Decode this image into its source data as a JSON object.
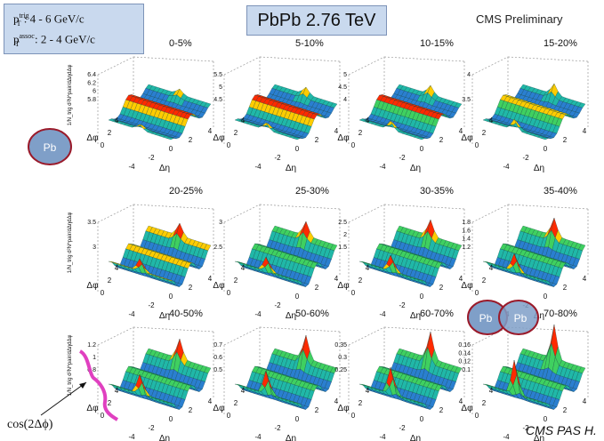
{
  "header": {
    "title": "PbPb 2.76 TeV",
    "preliminary": "CMS Preliminary",
    "footer": "CMS PAS H.",
    "trig_cut": ": 4 - 6 GeV/c",
    "assoc_cut": ": 2 - 4 GeV/c",
    "pt_symbol": "p",
    "trig_sup": "trig",
    "assoc_sup": "assoc",
    "T_sub": "T"
  },
  "annotations": {
    "cos_label": "cos(2Δϕ)",
    "pb_single": "Pb",
    "pb_left": "Pb",
    "pb_right": "Pb"
  },
  "colors": {
    "box_fill": "#c9d9ee",
    "box_border": "#7d93b8",
    "pb_fill": "#7f9fc8",
    "pb_border": "#9a1a2a",
    "annotation_curve": "#e040c0"
  },
  "chart_data": [
    {
      "type": "heatmap",
      "label": "0-5%",
      "zlabel": "1/N_trig d²N^pair/dΔηdΔφ",
      "xlabel": "Δη",
      "ylabel": "Δφ",
      "x_ticks": [
        "-4",
        "-2",
        "0",
        "2",
        "4"
      ],
      "y_ticks": [
        "0",
        "2",
        "4"
      ],
      "z_ticks": [
        "5.8",
        "6",
        "6.2",
        "6.4"
      ],
      "zlim": [
        5.8,
        6.4
      ]
    },
    {
      "type": "heatmap",
      "label": "5-10%",
      "zlabel": "",
      "xlabel": "Δη",
      "ylabel": "Δφ",
      "x_ticks": [
        "-4",
        "-2",
        "0",
        "2",
        "4"
      ],
      "y_ticks": [
        "0",
        "2",
        "4"
      ],
      "z_ticks": [
        "4.5",
        "5",
        "5.5"
      ],
      "zlim": [
        4.5,
        5.5
      ]
    },
    {
      "type": "heatmap",
      "label": "10-15%",
      "zlabel": "",
      "xlabel": "Δη",
      "ylabel": "Δφ",
      "x_ticks": [
        "-4",
        "-2",
        "0",
        "2",
        "4"
      ],
      "y_ticks": [
        "0",
        "2",
        "4"
      ],
      "z_ticks": [
        "4",
        "4.5",
        "5"
      ],
      "zlim": [
        4,
        5
      ]
    },
    {
      "type": "heatmap",
      "label": "15-20%",
      "zlabel": "",
      "xlabel": "Δη",
      "ylabel": "Δφ",
      "x_ticks": [
        "-4",
        "-2",
        "0",
        "2",
        "4"
      ],
      "y_ticks": [
        "0",
        "2",
        "4"
      ],
      "z_ticks": [
        "3.5",
        "4"
      ],
      "zlim": [
        3.5,
        4
      ]
    },
    {
      "type": "heatmap",
      "label": "20-25%",
      "zlabel": "1/N_trig d²N^pair/dΔηdΔφ",
      "xlabel": "Δη",
      "ylabel": "Δφ",
      "x_ticks": [
        "-4",
        "-2",
        "0",
        "2",
        "4"
      ],
      "y_ticks": [
        "0",
        "2",
        "4"
      ],
      "z_ticks": [
        "3",
        "3.5"
      ],
      "zlim": [
        2.8,
        3.6
      ]
    },
    {
      "type": "heatmap",
      "label": "25-30%",
      "zlabel": "",
      "xlabel": "Δη",
      "ylabel": "Δφ",
      "x_ticks": [
        "-4",
        "-2",
        "0",
        "2",
        "4"
      ],
      "y_ticks": [
        "0",
        "2",
        "4"
      ],
      "z_ticks": [
        "2.5",
        "3"
      ],
      "zlim": [
        2.3,
        3
      ]
    },
    {
      "type": "heatmap",
      "label": "30-35%",
      "zlabel": "",
      "xlabel": "Δη",
      "ylabel": "Δφ",
      "x_ticks": [
        "-4",
        "-2",
        "0",
        "2",
        "4"
      ],
      "y_ticks": [
        "0",
        "2",
        "4"
      ],
      "z_ticks": [
        "1.5",
        "2",
        "2.5"
      ],
      "zlim": [
        1.5,
        2.5
      ]
    },
    {
      "type": "heatmap",
      "label": "35-40%",
      "zlabel": "",
      "xlabel": "Δη",
      "ylabel": "Δφ",
      "x_ticks": [
        "-4",
        "-2",
        "0",
        "2",
        "4"
      ],
      "y_ticks": [
        "0",
        "2",
        "4"
      ],
      "z_ticks": [
        "1.2",
        "1.4",
        "1.6",
        "1.8"
      ],
      "zlim": [
        1.2,
        1.8
      ]
    },
    {
      "type": "heatmap",
      "label": "40-50%",
      "zlabel": "1/N_trig d²N^pair/dΔηdΔφ",
      "xlabel": "Δη",
      "ylabel": "Δφ",
      "x_ticks": [
        "-4",
        "-2",
        "0",
        "2",
        "4"
      ],
      "y_ticks": [
        "0",
        "2",
        "4"
      ],
      "z_ticks": [
        "0.8",
        "1",
        "1.2"
      ],
      "zlim": [
        0.8,
        1.2
      ]
    },
    {
      "type": "heatmap",
      "label": "50-60%",
      "zlabel": "",
      "xlabel": "Δη",
      "ylabel": "Δφ",
      "x_ticks": [
        "-4",
        "-2",
        "0",
        "2",
        "4"
      ],
      "y_ticks": [
        "0",
        "2",
        "4"
      ],
      "z_ticks": [
        "0.5",
        "0.6",
        "0.7"
      ],
      "zlim": [
        0.5,
        0.7
      ]
    },
    {
      "type": "heatmap",
      "label": "60-70%",
      "zlabel": "",
      "xlabel": "Δη",
      "ylabel": "Δφ",
      "x_ticks": [
        "-4",
        "-2",
        "0",
        "2",
        "4"
      ],
      "y_ticks": [
        "0",
        "2",
        "4"
      ],
      "z_ticks": [
        "0.25",
        "0.3",
        "0.35"
      ],
      "zlim": [
        0.25,
        0.35
      ]
    },
    {
      "type": "heatmap",
      "label": "70-80%",
      "zlabel": "",
      "xlabel": "Δη",
      "ylabel": "Δφ",
      "x_ticks": [
        "-4",
        "-2",
        "0",
        "2",
        "4"
      ],
      "y_ticks": [
        "0",
        "2",
        "4"
      ],
      "z_ticks": [
        "0.1",
        "0.12",
        "0.14",
        "0.16"
      ],
      "zlim": [
        0.1,
        0.16
      ]
    }
  ]
}
